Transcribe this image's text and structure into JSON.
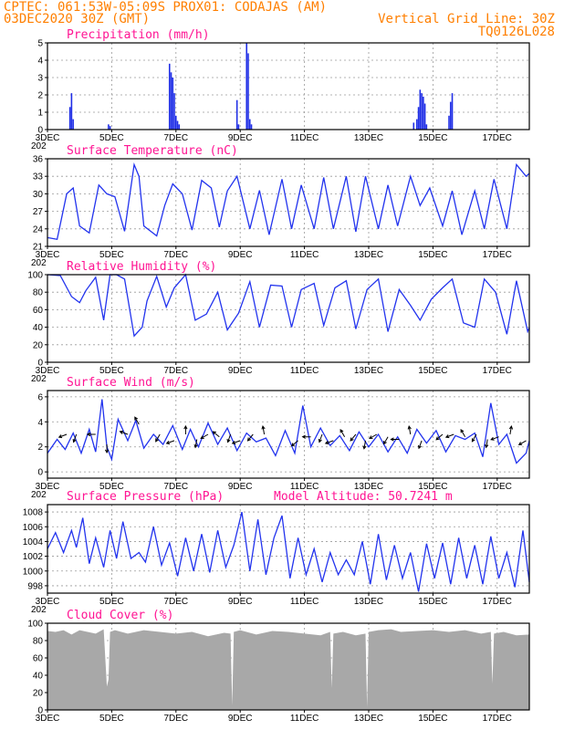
{
  "header": {
    "line1": "CPTEC:   061:53W-05:09S   PROX01: CODAJAS (AM)",
    "line2_left": "03DEC2020 30Z (GMT)",
    "line2_right": "Vertical Grid Line: 30Z",
    "line3_right": "TQ0126L028"
  },
  "colors": {
    "header": "#ff7f00",
    "title": "#ff1493",
    "series": "#2233ee",
    "cloud": "#a8a8a8"
  },
  "chart_data": [
    {
      "id": "precip",
      "type": "bar",
      "title": "Precipitation (mm/h)",
      "ylim": [
        0,
        5
      ],
      "yticks": [
        0,
        1,
        2,
        3,
        4,
        5
      ],
      "x": [
        3.7,
        3.75,
        3.8,
        4.9,
        4.95,
        6.8,
        6.85,
        6.9,
        6.95,
        7.0,
        7.05,
        7.1,
        8.9,
        8.95,
        9.2,
        9.25,
        9.3,
        9.35,
        14.4,
        14.5,
        14.55,
        14.6,
        14.65,
        14.7,
        14.75,
        14.8,
        15.5,
        15.55,
        15.6
      ],
      "values": [
        1.3,
        2.1,
        0.6,
        0.3,
        0.2,
        3.8,
        3.3,
        3.0,
        2.1,
        0.8,
        0.5,
        0.3,
        1.7,
        0.3,
        5.0,
        4.4,
        0.6,
        0.3,
        0.4,
        0.6,
        1.3,
        2.3,
        2.1,
        1.9,
        1.5,
        0.3,
        0.8,
        1.6,
        2.1
      ],
      "grid": true
    },
    {
      "id": "temp",
      "type": "line",
      "title": "Surface Temperature (nC)",
      "ylim": [
        21,
        36
      ],
      "yticks": [
        21,
        24,
        27,
        30,
        33,
        36
      ],
      "x": [
        3.0,
        3.3,
        3.6,
        3.8,
        4.0,
        4.3,
        4.6,
        4.85,
        5.1,
        5.4,
        5.7,
        5.85,
        6.0,
        6.4,
        6.65,
        6.9,
        7.2,
        7.5,
        7.8,
        8.1,
        8.35,
        8.6,
        8.9,
        9.3,
        9.6,
        9.9,
        10.3,
        10.6,
        10.9,
        11.3,
        11.6,
        11.9,
        12.3,
        12.6,
        12.9,
        13.3,
        13.6,
        13.9,
        14.3,
        14.6,
        14.9,
        15.3,
        15.6,
        15.9,
        16.3,
        16.6,
        16.9,
        17.3,
        17.6,
        17.9,
        18.0
      ],
      "values": [
        22.5,
        22.2,
        30.0,
        31.0,
        24.5,
        23.3,
        31.5,
        30.0,
        29.5,
        23.6,
        35.0,
        33.0,
        24.5,
        22.8,
        28.0,
        31.7,
        30.0,
        23.8,
        32.3,
        31.0,
        24.3,
        30.5,
        33.0,
        24.0,
        30.6,
        23.0,
        32.5,
        24.0,
        31.5,
        24.0,
        32.8,
        24.0,
        33.0,
        23.5,
        33.0,
        24.0,
        31.5,
        24.5,
        33.0,
        28.0,
        31.0,
        24.5,
        30.5,
        23.0,
        30.5,
        24.0,
        32.5,
        24.0,
        35.0,
        33.0,
        33.5
      ],
      "grid": true
    },
    {
      "id": "rh",
      "type": "line",
      "title": "Relative Humidity (%)",
      "ylim": [
        0,
        100
      ],
      "yticks": [
        0,
        20,
        40,
        60,
        80,
        100
      ],
      "x": [
        3.0,
        3.4,
        3.75,
        4.0,
        4.2,
        4.5,
        4.75,
        4.95,
        5.15,
        5.4,
        5.7,
        5.95,
        6.1,
        6.4,
        6.7,
        6.95,
        7.3,
        7.6,
        7.95,
        8.3,
        8.6,
        8.95,
        9.3,
        9.6,
        9.95,
        10.3,
        10.6,
        10.9,
        11.3,
        11.6,
        11.95,
        12.3,
        12.6,
        12.95,
        13.3,
        13.6,
        13.95,
        14.3,
        14.6,
        14.95,
        15.3,
        15.6,
        15.95,
        16.3,
        16.6,
        16.95,
        17.3,
        17.6,
        17.95,
        18.0
      ],
      "values": [
        100,
        99,
        75,
        68,
        82,
        97,
        48,
        100,
        100,
        95,
        30,
        40,
        70,
        98,
        63,
        85,
        100,
        48,
        55,
        80,
        37,
        56,
        92,
        40,
        88,
        87,
        40,
        83,
        90,
        42,
        85,
        93,
        38,
        83,
        95,
        35,
        83,
        65,
        48,
        72,
        85,
        95,
        45,
        40,
        95,
        80,
        32,
        93,
        35,
        40
      ],
      "grid": true
    },
    {
      "id": "wind",
      "type": "line",
      "title": "Surface Wind (m/s)",
      "ylim": [
        -0.5,
        6.5
      ],
      "yticks": [
        0,
        2,
        4,
        6
      ],
      "x": [
        3.0,
        3.3,
        3.55,
        3.8,
        4.05,
        4.3,
        4.5,
        4.7,
        4.85,
        5.0,
        5.2,
        5.5,
        5.75,
        6.0,
        6.3,
        6.6,
        6.9,
        7.2,
        7.45,
        7.7,
        8.0,
        8.3,
        8.6,
        8.9,
        9.2,
        9.5,
        9.8,
        10.1,
        10.4,
        10.7,
        10.95,
        11.2,
        11.5,
        11.8,
        12.1,
        12.4,
        12.7,
        13.0,
        13.3,
        13.6,
        13.9,
        14.2,
        14.5,
        14.8,
        15.1,
        15.4,
        15.7,
        16.0,
        16.3,
        16.55,
        16.8,
        17.05,
        17.3,
        17.6,
        17.9,
        18.0
      ],
      "values": [
        1.5,
        2.6,
        1.8,
        3.1,
        1.5,
        3.4,
        1.6,
        5.8,
        2.0,
        1.0,
        4.2,
        2.5,
        4.1,
        1.9,
        3.0,
        2.2,
        3.7,
        1.8,
        3.4,
        2.0,
        3.9,
        2.2,
        3.5,
        1.7,
        3.1,
        2.4,
        2.7,
        1.3,
        3.3,
        1.5,
        5.3,
        2.0,
        3.5,
        2.1,
        2.9,
        1.7,
        3.2,
        2.0,
        3.0,
        1.6,
        2.8,
        1.5,
        3.4,
        2.3,
        3.3,
        1.6,
        2.9,
        2.6,
        3.1,
        1.2,
        5.5,
        2.2,
        3.0,
        0.7,
        1.5,
        2.5
      ],
      "vectors_x": [
        3.6,
        3.9,
        4.5,
        4.85,
        5.5,
        5.85,
        6.5,
        6.95,
        7.3,
        7.65,
        8.0,
        8.35,
        8.7,
        9.0,
        9.4,
        9.75,
        10.8,
        11.2,
        11.55,
        11.9,
        12.25,
        12.6,
        12.9,
        13.25,
        13.6,
        13.95,
        14.3,
        14.65,
        15.3,
        15.65,
        16.0,
        16.35,
        16.7,
        17.05,
        17.4,
        17.9
      ],
      "vectors_y": [
        3.0,
        3.0,
        3.0,
        2.2,
        3.0,
        3.8,
        3.0,
        2.5,
        3.0,
        2.6,
        3.0,
        2.8,
        3.0,
        2.5,
        3.0,
        3.0,
        2.5,
        2.8,
        3.0,
        2.5,
        2.8,
        3.0,
        2.5,
        3.0,
        2.8,
        2.6,
        3.0,
        2.5,
        3.0,
        3.0,
        2.8,
        3.0,
        2.6,
        2.8,
        3.0,
        2.5
      ],
      "vectors_dir": [
        200,
        250,
        180,
        270,
        160,
        120,
        240,
        200,
        90,
        260,
        210,
        140,
        250,
        200,
        230,
        100,
        220,
        180,
        250,
        200,
        120,
        230,
        260,
        210,
        240,
        180,
        100,
        250,
        220,
        200,
        120,
        240,
        260,
        200,
        80,
        210
      ],
      "grid": true
    },
    {
      "id": "pressure",
      "type": "line",
      "title": "Surface Pressure (hPa)",
      "annotation": "Model Altitude: 50.7241 m",
      "ylim": [
        997,
        1009
      ],
      "yticks": [
        998,
        1000,
        1002,
        1004,
        1006,
        1008
      ],
      "x": [
        3.0,
        3.25,
        3.5,
        3.75,
        3.9,
        4.1,
        4.3,
        4.5,
        4.75,
        4.95,
        5.15,
        5.35,
        5.6,
        5.85,
        6.05,
        6.3,
        6.55,
        6.8,
        7.05,
        7.3,
        7.55,
        7.8,
        8.05,
        8.3,
        8.55,
        8.8,
        9.05,
        9.3,
        9.55,
        9.8,
        10.05,
        10.3,
        10.55,
        10.8,
        11.05,
        11.3,
        11.55,
        11.8,
        12.05,
        12.3,
        12.55,
        12.8,
        13.05,
        13.3,
        13.55,
        13.8,
        14.05,
        14.3,
        14.55,
        14.8,
        15.05,
        15.3,
        15.55,
        15.8,
        16.05,
        16.3,
        16.55,
        16.8,
        17.05,
        17.3,
        17.55,
        17.8,
        18.0
      ],
      "values": [
        1003,
        1005.2,
        1002.5,
        1005.5,
        1003.2,
        1007.2,
        1001,
        1004.5,
        1000.5,
        1005.5,
        1001.7,
        1006.7,
        1001.7,
        1002.5,
        1001.2,
        1006,
        1000.8,
        1003.8,
        999.3,
        1004.5,
        1000,
        1005,
        999.8,
        1005.5,
        1000.5,
        1003.5,
        1008,
        1000,
        1007,
        999.5,
        1004.5,
        1007.5,
        999,
        1004.5,
        999.5,
        1003,
        998.5,
        1002.5,
        999.5,
        1001.5,
        999.5,
        1004,
        998.2,
        1005,
        998.8,
        1003.5,
        999,
        1002.5,
        997.2,
        1003.7,
        999,
        1003.8,
        998.2,
        1004.5,
        999,
        1003.5,
        998.2,
        1004.7,
        999,
        1002.5,
        997.8,
        1005.5,
        998.5
      ],
      "grid": true
    },
    {
      "id": "cloud",
      "type": "area",
      "title": "Cloud Cover (%)",
      "ylim": [
        0,
        100
      ],
      "yticks": [
        0,
        20,
        40,
        60,
        80,
        100
      ],
      "x": [
        3.0,
        3.25,
        3.5,
        3.75,
        4.0,
        4.25,
        4.5,
        4.75,
        4.85,
        4.9,
        4.95,
        5.1,
        5.5,
        6.0,
        6.5,
        7.0,
        7.5,
        8.0,
        8.5,
        8.7,
        8.75,
        8.8,
        9.0,
        9.5,
        10.0,
        10.5,
        11.0,
        11.5,
        11.8,
        11.85,
        11.9,
        12.2,
        12.6,
        12.9,
        12.95,
        13.0,
        13.3,
        13.7,
        14.0,
        14.5,
        15.0,
        15.5,
        16.0,
        16.5,
        16.8,
        16.85,
        16.9,
        17.2,
        17.6,
        18.0
      ],
      "values": [
        91,
        90,
        92,
        87,
        92,
        90,
        88,
        93,
        27,
        35,
        90,
        92,
        88,
        92,
        90,
        88,
        90,
        85,
        89,
        88,
        5,
        90,
        92,
        87,
        91,
        90,
        88,
        86,
        90,
        25,
        88,
        90,
        86,
        88,
        3,
        90,
        92,
        93,
        90,
        91,
        92,
        90,
        92,
        88,
        90,
        30,
        88,
        90,
        86,
        87
      ],
      "grid": true
    }
  ],
  "x_axis": {
    "range": [
      3,
      18
    ],
    "tick_days": [
      3,
      5,
      7,
      9,
      11,
      13,
      15,
      17
    ],
    "tick_labels": [
      "3DEC",
      "5DEC",
      "7DEC",
      "9DEC",
      "11DEC",
      "13DEC",
      "15DEC",
      "17DEC"
    ],
    "cut_label": "202"
  }
}
